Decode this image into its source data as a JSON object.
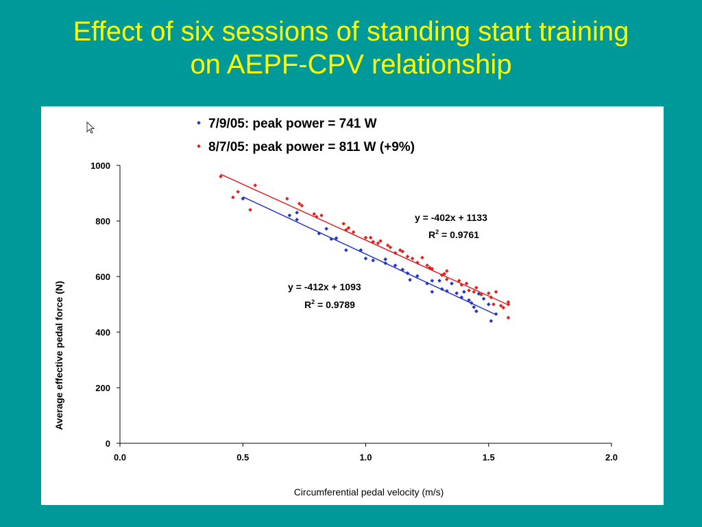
{
  "slide": {
    "title_line1": "Effect of six sessions of standing start training",
    "title_line2": "on AEPF-CPV relationship"
  },
  "chart_data": {
    "type": "scatter",
    "xlabel": "Circumferential pedal velocity (m/s)",
    "ylabel": "Average effective pedal force (N)",
    "xlim": [
      0,
      2
    ],
    "ylim": [
      0,
      1000
    ],
    "x_ticks": [
      "0.0",
      "0.5",
      "1.0",
      "1.5",
      "2.0"
    ],
    "y_ticks": [
      "0",
      "200",
      "400",
      "600",
      "800",
      "1000"
    ],
    "legend_position": "top-left",
    "grid": false,
    "series": [
      {
        "name": "7/9/05: peak power = 741 W",
        "color": "#2233cc",
        "trendline": {
          "slope": -412,
          "intercept": 1093
        },
        "equation": "y = -412x + 1093",
        "r2_prefix": "R",
        "r2_value": " = 0.9789",
        "points": [
          [
            0.5,
            880
          ],
          [
            0.69,
            820
          ],
          [
            0.72,
            830
          ],
          [
            0.72,
            805
          ],
          [
            0.81,
            755
          ],
          [
            0.84,
            772
          ],
          [
            0.86,
            735
          ],
          [
            0.88,
            738
          ],
          [
            0.92,
            695
          ],
          [
            0.98,
            695
          ],
          [
            1.0,
            665
          ],
          [
            1.03,
            658
          ],
          [
            1.08,
            662
          ],
          [
            1.08,
            648
          ],
          [
            1.12,
            640
          ],
          [
            1.15,
            625
          ],
          [
            1.17,
            612
          ],
          [
            1.18,
            588
          ],
          [
            1.21,
            602
          ],
          [
            1.25,
            575
          ],
          [
            1.27,
            585
          ],
          [
            1.27,
            545
          ],
          [
            1.3,
            585
          ],
          [
            1.31,
            555
          ],
          [
            1.33,
            548
          ],
          [
            1.35,
            575
          ],
          [
            1.37,
            540
          ],
          [
            1.39,
            525
          ],
          [
            1.4,
            545
          ],
          [
            1.42,
            515
          ],
          [
            1.43,
            505
          ],
          [
            1.44,
            490
          ],
          [
            1.45,
            475
          ],
          [
            1.46,
            538
          ],
          [
            1.48,
            520
          ],
          [
            1.5,
            500
          ],
          [
            1.51,
            440
          ],
          [
            1.53,
            465
          ]
        ]
      },
      {
        "name": "8/7/05: peak power = 811 W (+9%)",
        "color": "#dd2222",
        "trendline": {
          "slope": -402,
          "intercept": 1133
        },
        "equation": "y = -402x + 1133",
        "r2_prefix": "R",
        "r2_value": " = 0.9761",
        "points": [
          [
            0.41,
            960
          ],
          [
            0.46,
            885
          ],
          [
            0.48,
            905
          ],
          [
            0.53,
            840
          ],
          [
            0.55,
            928
          ],
          [
            0.68,
            880
          ],
          [
            0.73,
            862
          ],
          [
            0.74,
            855
          ],
          [
            0.79,
            825
          ],
          [
            0.8,
            815
          ],
          [
            0.82,
            820
          ],
          [
            0.91,
            790
          ],
          [
            0.92,
            768
          ],
          [
            0.93,
            775
          ],
          [
            0.95,
            760
          ],
          [
            1.0,
            740
          ],
          [
            1.02,
            740
          ],
          [
            1.03,
            725
          ],
          [
            1.05,
            720
          ],
          [
            1.06,
            728
          ],
          [
            1.09,
            712
          ],
          [
            1.1,
            705
          ],
          [
            1.12,
            685
          ],
          [
            1.14,
            695
          ],
          [
            1.15,
            690
          ],
          [
            1.17,
            672
          ],
          [
            1.19,
            665
          ],
          [
            1.21,
            650
          ],
          [
            1.23,
            668
          ],
          [
            1.25,
            640
          ],
          [
            1.26,
            632
          ],
          [
            1.27,
            628
          ],
          [
            1.31,
            605
          ],
          [
            1.32,
            610
          ],
          [
            1.33,
            620
          ],
          [
            1.33,
            590
          ],
          [
            1.38,
            585
          ],
          [
            1.39,
            570
          ],
          [
            1.41,
            575
          ],
          [
            1.42,
            550
          ],
          [
            1.44,
            545
          ],
          [
            1.45,
            560
          ],
          [
            1.47,
            535
          ],
          [
            1.5,
            540
          ],
          [
            1.51,
            525
          ],
          [
            1.52,
            500
          ],
          [
            1.53,
            545
          ],
          [
            1.55,
            495
          ],
          [
            1.56,
            488
          ],
          [
            1.58,
            500
          ],
          [
            1.58,
            508
          ],
          [
            1.58,
            452
          ]
        ]
      }
    ]
  }
}
